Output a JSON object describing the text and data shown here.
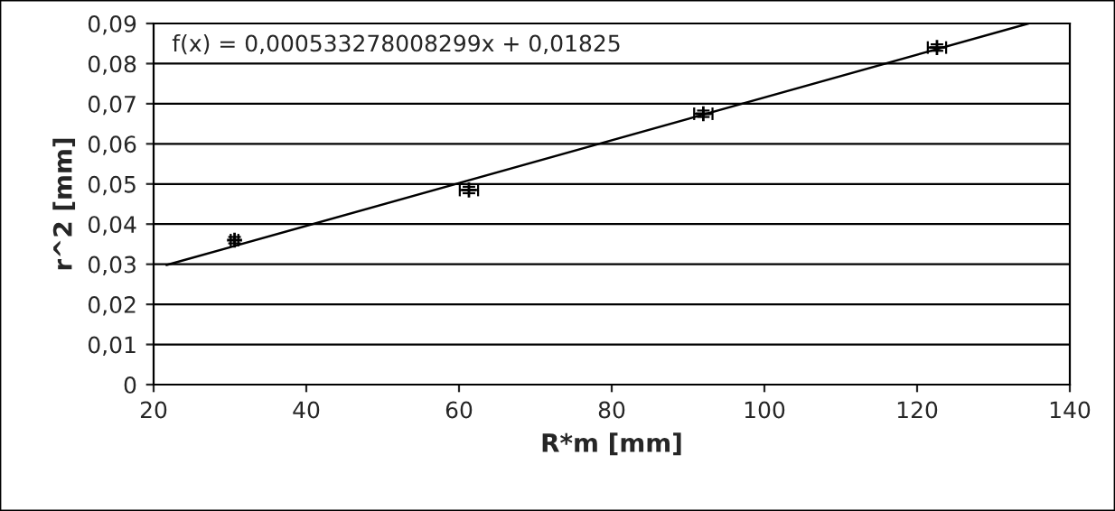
{
  "chart_data": {
    "type": "scatter",
    "xlabel": "R*m [mm]",
    "ylabel": "r^2 [mm]",
    "annotations": [
      "f(x) = 0,000533278008299x + 0,01825"
    ],
    "series": [
      {
        "color": "#000000",
        "marker": "cross",
        "x": [
          30.6,
          61.3,
          92,
          122.6
        ],
        "values": [
          0.036,
          0.0485,
          0.0675,
          0.084
        ],
        "errors": [
          0.0008,
          0.0008,
          0.0008,
          0.0008
        ],
        "xerrors": [
          0.5,
          1.2,
          1.2,
          1.2
        ]
      },
      {
        "type": "line",
        "color": "#000000",
        "marker": "none",
        "x": [
          21.7,
          134.6
        ],
        "values": [
          0.0298,
          0.09
        ]
      }
    ],
    "xlim": [
      20,
      140
    ],
    "xticks": [
      20,
      40,
      60,
      80,
      100,
      120,
      140
    ],
    "ylim": [
      0,
      0.09
    ],
    "yticks": [
      0,
      {
        "value": 0.01,
        "label": "0,01"
      },
      {
        "value": 0.02,
        "label": "0,02"
      },
      {
        "value": 0.03,
        "label": "0,03"
      },
      {
        "value": 0.04,
        "label": "0,04"
      },
      {
        "value": 0.05,
        "label": "0,05"
      },
      {
        "value": 0.06,
        "label": "0,06"
      },
      {
        "value": 0.07,
        "label": "0,07"
      },
      {
        "value": 0.08,
        "label": "0,08"
      },
      {
        "value": 0.09,
        "label": "0,09"
      }
    ],
    "grid": "y",
    "legend": false
  }
}
